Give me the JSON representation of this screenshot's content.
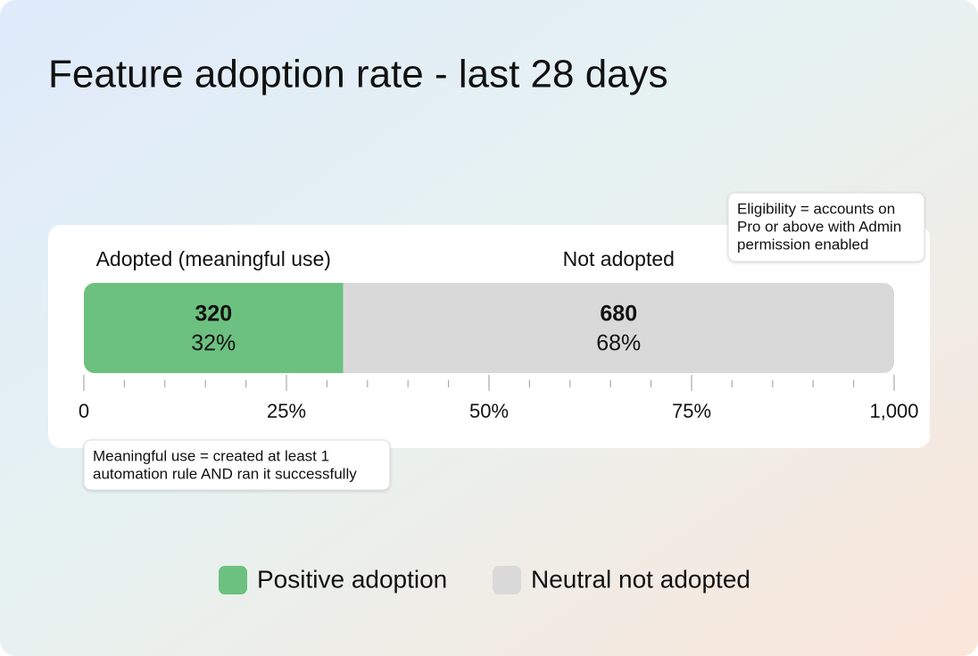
{
  "chart_data": {
    "type": "stacked_hbar",
    "title": "Feature adoption rate - last 28 days",
    "series": [
      {
        "name": "Positive adoption",
        "header": "Adopted (meaningful use)",
        "color": "#6cc080",
        "values": [
          320
        ],
        "value_labels": [
          "32%"
        ]
      },
      {
        "name": "Neutral not adopted",
        "header": "Not adopted",
        "color": "#d9d9d9",
        "values": [
          680
        ],
        "value_labels": [
          "68%"
        ]
      }
    ],
    "xlim": [
      0,
      1000
    ],
    "xticks": [
      0,
      {
        "value": 250,
        "label": "25%"
      },
      {
        "value": 500,
        "label": "50%"
      },
      {
        "value": 750,
        "label": "75%"
      },
      {
        "value": 1000,
        "label": "1,000"
      }
    ],
    "xminorticks": [
      50,
      100,
      150,
      200,
      300,
      350,
      400,
      450,
      550,
      600,
      650,
      700,
      800,
      850,
      900,
      950
    ],
    "annotations": [
      {
        "lines": [
          "Eligibility = accounts on",
          "Pro or above with Admin",
          "permission enabled"
        ]
      },
      {
        "lines": [
          "Meaningful use = created at least 1",
          "automation rule AND ran it successfully"
        ]
      }
    ]
  }
}
